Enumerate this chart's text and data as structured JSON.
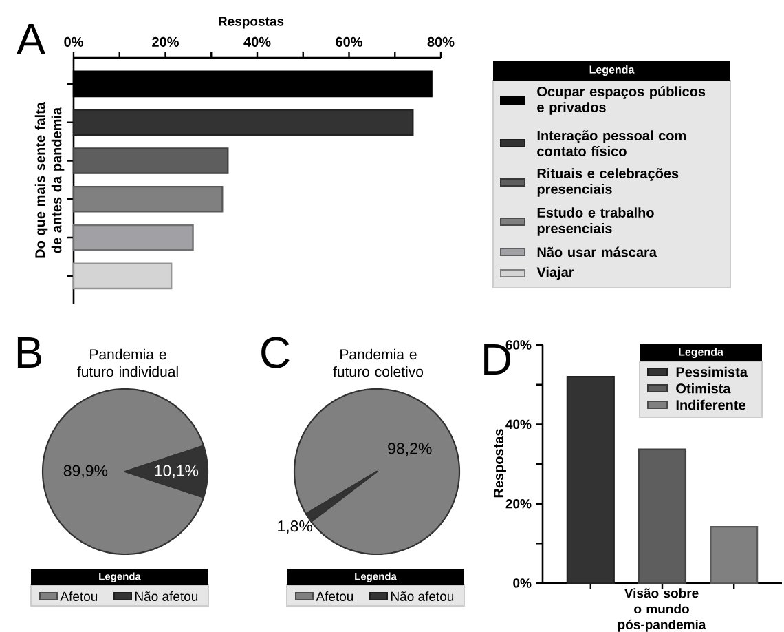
{
  "chart_data": [
    {
      "type": "bar",
      "orientation": "horizontal",
      "annotations": [
        "A"
      ],
      "xlabel": "Respostas",
      "ylabel": "Do que mais sente falta de antes da pandemia",
      "legend_title": "Legenda",
      "legend": "right",
      "categories": [
        null,
        null,
        null,
        null,
        null,
        null
      ],
      "series": [
        {
          "name": "Ocupar espaços públicos e privados",
          "color": "#000000",
          "values": [
            78.0,
            null,
            null,
            null,
            null,
            null
          ]
        },
        {
          "name": "Interação pessoal com contato físico",
          "color": "#333333",
          "values": [
            null,
            73.9,
            null,
            null,
            null,
            null
          ]
        },
        {
          "name": "Rituais e celebrações presenciais",
          "color": "#5e5e5e",
          "values": [
            null,
            null,
            33.6,
            null,
            null,
            null
          ]
        },
        {
          "name": "Estudo e trabalho presenciais",
          "color": "#808080",
          "values": [
            null,
            null,
            null,
            32.4,
            null,
            null
          ]
        },
        {
          "name": "Não usar máscara",
          "color": "#a0a0a5",
          "values": [
            null,
            null,
            null,
            null,
            26.0,
            null
          ]
        },
        {
          "name": "Viajar",
          "color": "#d4d4d4",
          "values": [
            null,
            null,
            null,
            null,
            null,
            21.3
          ]
        }
      ],
      "xlim": [
        0,
        80
      ],
      "xticks": [
        {
          "value": 0,
          "label": "0%"
        },
        {
          "value": 10,
          "label": null
        },
        {
          "value": 20,
          "label": "20%"
        },
        {
          "value": 30,
          "label": null
        },
        {
          "value": 40,
          "label": "40%"
        },
        {
          "value": 50,
          "label": null
        },
        {
          "value": 60,
          "label": "60%"
        },
        {
          "value": 70,
          "label": null
        },
        {
          "value": 80,
          "label": "80%"
        }
      ]
    },
    {
      "type": "pie",
      "annotations": [
        "B"
      ],
      "title": "Pandemia e futuro individual",
      "categories": [
        "Afetou",
        "Não afetou"
      ],
      "values": [
        89.9,
        10.1
      ],
      "colors": [
        "#808080",
        "#333333"
      ],
      "value_labels": [
        "89,9%",
        "10,1%"
      ],
      "legend": "bottom",
      "legend_title": "Legenda"
    },
    {
      "type": "pie",
      "annotations": [
        "C"
      ],
      "title": "Pandemia e futuro coletivo",
      "categories": [
        "Afetou",
        "Não afetou"
      ],
      "values": [
        98.2,
        1.8
      ],
      "colors": [
        "#808080",
        "#333333"
      ],
      "value_labels": [
        "98,2%",
        "1,8%"
      ],
      "legend": "bottom",
      "legend_title": "Legenda"
    },
    {
      "type": "bar",
      "annotations": [
        "D"
      ],
      "xlabel": "Visão sobre o mundo pós-pandemia",
      "ylabel": "Respostas",
      "legend_title": "Legenda",
      "legend": "top right",
      "categories": [
        null,
        null,
        null
      ],
      "series": [
        {
          "name": "Pessimista",
          "color": "#333333",
          "values": [
            52.0,
            null,
            null
          ]
        },
        {
          "name": "Otimista",
          "color": "#5e5e5e",
          "values": [
            null,
            33.7,
            null
          ]
        },
        {
          "name": "Indiferente",
          "color": "#808080",
          "values": [
            null,
            null,
            14.2
          ]
        }
      ],
      "ylim": [
        0,
        60
      ],
      "yticks": [
        {
          "value": 0,
          "label": "0%"
        },
        {
          "value": 10,
          "label": null
        },
        {
          "value": 20,
          "label": "20%"
        },
        {
          "value": 30,
          "label": null
        },
        {
          "value": 40,
          "label": "40%"
        },
        {
          "value": 50,
          "label": null
        },
        {
          "value": 60,
          "label": "60%"
        }
      ]
    }
  ]
}
